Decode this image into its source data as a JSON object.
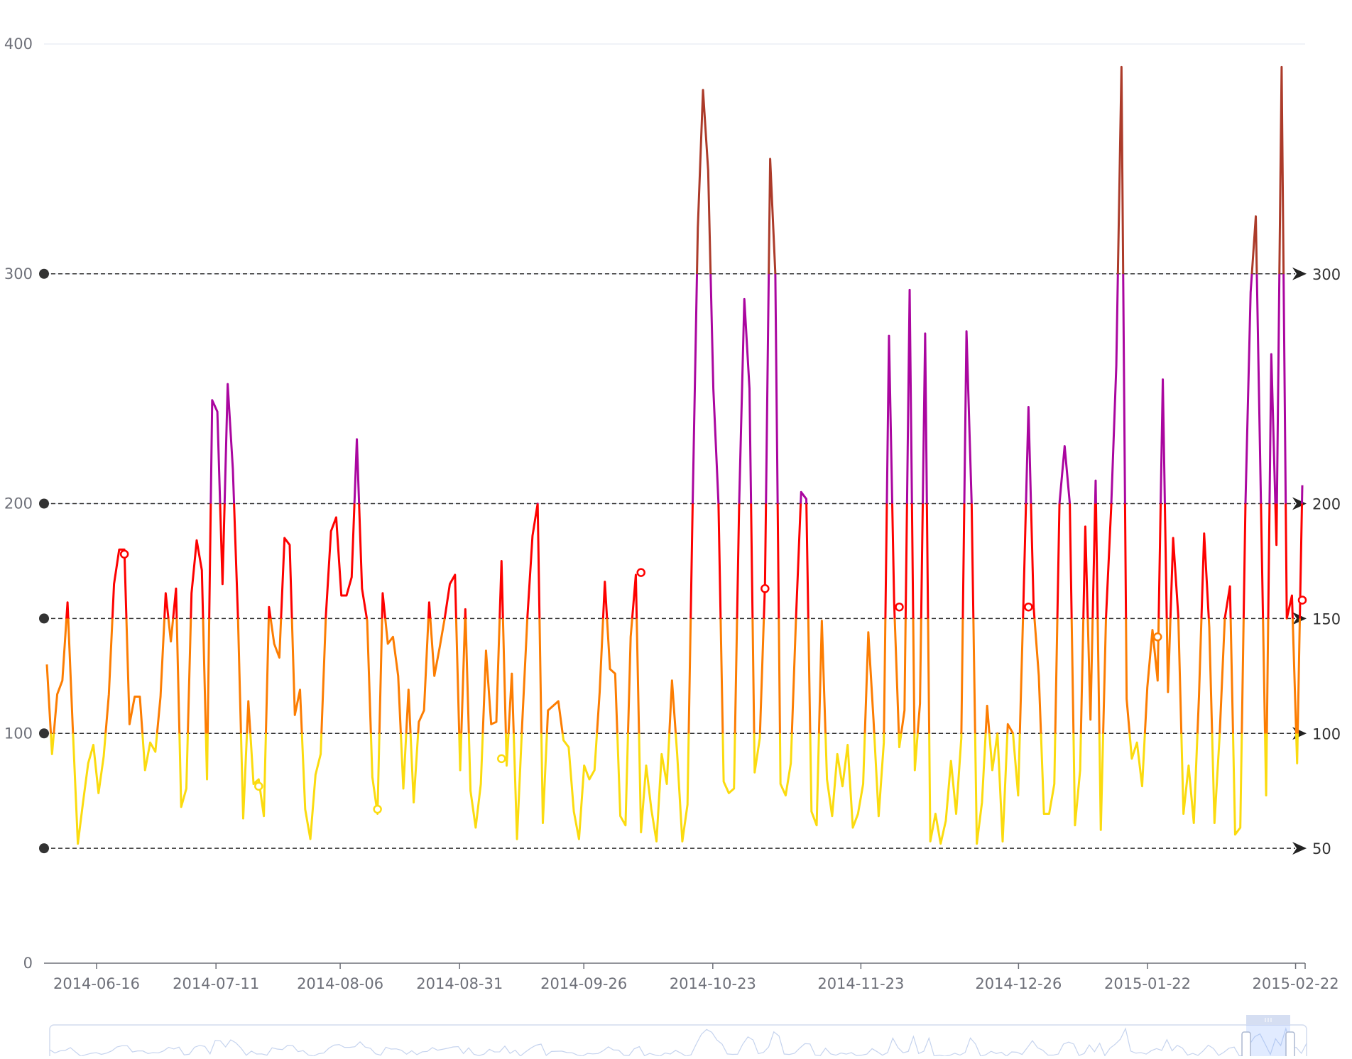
{
  "chart_data": {
    "type": "line",
    "x_range": [
      "2014-06-05",
      "2015-02-24"
    ],
    "x_ticks": [
      "2014-06-16",
      "2014-07-11",
      "2014-08-06",
      "2014-08-31",
      "2014-09-26",
      "2014-10-23",
      "2014-11-23",
      "2014-12-26",
      "2015-01-22",
      "2015-02-22"
    ],
    "y_ticks": [
      "0",
      "100",
      "200",
      "300",
      "400"
    ],
    "ylim": [
      0,
      400
    ],
    "grid": "horizontal",
    "mark_lines": [
      {
        "value": 50,
        "label": "50"
      },
      {
        "value": 100,
        "label": "100"
      },
      {
        "value": 150,
        "label": "150"
      },
      {
        "value": 200,
        "label": "200"
      },
      {
        "value": 300,
        "label": "300"
      }
    ],
    "visual_map_pieces": [
      {
        "gt": 0,
        "lte": 100,
        "color": "#FBDB0F"
      },
      {
        "gt": 100,
        "lte": 150,
        "color": "#FC7D02"
      },
      {
        "gt": 150,
        "lte": 200,
        "color": "#FD0100"
      },
      {
        "gt": 200,
        "lte": 300,
        "color": "#AA069F"
      },
      {
        "gt": 300,
        "color": "#AC3B2A"
      }
    ],
    "series": [
      {
        "values": [
          130,
          91,
          117,
          123,
          157,
          103,
          52,
          70,
          87,
          95,
          74,
          90,
          117,
          165,
          180,
          180,
          104,
          116,
          116,
          84,
          96,
          92,
          116,
          161,
          140,
          163,
          68,
          76,
          161,
          184,
          171,
          80,
          245,
          240,
          165,
          252,
          215,
          150,
          63,
          114,
          78,
          80,
          64,
          155,
          139,
          133,
          185,
          182,
          108,
          119,
          67,
          54,
          82,
          91,
          151,
          188,
          194,
          160,
          160,
          168,
          228,
          163,
          149,
          81,
          65,
          161,
          139,
          142,
          125,
          76,
          119,
          70,
          105,
          110,
          157,
          125,
          137,
          150,
          165,
          169,
          84,
          154,
          75,
          59,
          78,
          136,
          104,
          105,
          175,
          86,
          126,
          54,
          104,
          150,
          186,
          200,
          61,
          110,
          112,
          114,
          97,
          94,
          66,
          54,
          86,
          80,
          84,
          118,
          166,
          128,
          126,
          64,
          60,
          142,
          169,
          57,
          86,
          67,
          53,
          91,
          78,
          123,
          91,
          53,
          69,
          200,
          320,
          380,
          345,
          250,
          200,
          79,
          74,
          76,
          200,
          289,
          250,
          83,
          98,
          165,
          350,
          300,
          78,
          73,
          87,
          150,
          205,
          202,
          66,
          60,
          149,
          80,
          64,
          91,
          77,
          95,
          59,
          65,
          78,
          144,
          106,
          64,
          96,
          273,
          157,
          94,
          110,
          293,
          84,
          113,
          274,
          53,
          65,
          52,
          62,
          88,
          65,
          98,
          275,
          200,
          52,
          70,
          112,
          84,
          100,
          53,
          104,
          100,
          73,
          155,
          242,
          155,
          125,
          65,
          65,
          78,
          200,
          225,
          200,
          60,
          84,
          190,
          106,
          210,
          58,
          150,
          198,
          260,
          390,
          115,
          89,
          96,
          77,
          120,
          145,
          123,
          254,
          118,
          185,
          151,
          65,
          86,
          61,
          116,
          187,
          146,
          61,
          99,
          150,
          164,
          56,
          59,
          200,
          292,
          325,
          200,
          73,
          265,
          182,
          390,
          150,
          160,
          87,
          208
        ],
        "circles": [
          {
            "index": 15,
            "value": 178
          },
          {
            "index": 41,
            "value": 77
          },
          {
            "index": 64,
            "value": 67
          },
          {
            "index": 88,
            "value": 89
          },
          {
            "index": 115,
            "value": 170
          },
          {
            "index": 139,
            "value": 163
          },
          {
            "index": 165,
            "value": 155
          },
          {
            "index": 190,
            "value": 155
          },
          {
            "index": 215,
            "value": 142
          },
          {
            "index": 243,
            "value": 158
          }
        ]
      }
    ],
    "data_zoom": {
      "start_fraction": 0.952,
      "end_fraction": 0.987
    }
  }
}
